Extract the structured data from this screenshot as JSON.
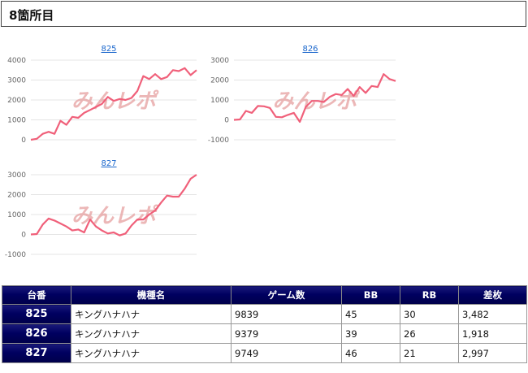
{
  "page": {
    "title": "8箇所目"
  },
  "charts": [
    {
      "link": "825",
      "y_ticks": [
        "4000",
        "3000",
        "2000",
        "1000",
        "0"
      ],
      "ylim": [
        0,
        4000
      ],
      "values": [
        0,
        50,
        300,
        400,
        300,
        950,
        750,
        1150,
        1100,
        1350,
        1500,
        1650,
        1800,
        2150,
        1950,
        2050,
        2000,
        2100,
        2450,
        3200,
        3050,
        3300,
        3050,
        3150,
        3500,
        3450,
        3600,
        3250,
        3500
      ]
    },
    {
      "link": "826",
      "y_ticks": [
        "3000",
        "2000",
        "1000",
        "0",
        "-1000"
      ],
      "ylim": [
        -1000,
        3000
      ],
      "values": [
        0,
        20,
        450,
        350,
        700,
        680,
        600,
        150,
        130,
        250,
        350,
        -100,
        650,
        950,
        950,
        900,
        1150,
        1300,
        1250,
        1550,
        1200,
        1650,
        1350,
        1700,
        1650,
        2300,
        2050,
        1950
      ]
    },
    {
      "link": "827",
      "y_ticks": [
        "3000",
        "2000",
        "1000",
        "0",
        "-1000"
      ],
      "ylim": [
        -1000,
        3000
      ],
      "values": [
        0,
        20,
        500,
        800,
        700,
        550,
        400,
        200,
        250,
        100,
        750,
        400,
        200,
        50,
        100,
        -50,
        50,
        450,
        750,
        750,
        1000,
        1200,
        1600,
        1950,
        1900,
        1900,
        2300,
        2800,
        3000
      ]
    }
  ],
  "table": {
    "headers": [
      "台番",
      "機種名",
      "ゲーム数",
      "BB",
      "RB",
      "差枚"
    ],
    "rows": [
      {
        "number": "825",
        "model": "キングハナハナ",
        "games": "9839",
        "bb": "45",
        "rb": "30",
        "diff": "3,482"
      },
      {
        "number": "826",
        "model": "キングハナハナ",
        "games": "9379",
        "bb": "39",
        "rb": "26",
        "diff": "1,918"
      },
      {
        "number": "827",
        "model": "キングハナハナ",
        "games": "9749",
        "bb": "46",
        "rb": "21",
        "diff": "2,997"
      }
    ]
  },
  "colors": {
    "line": "#f0607a",
    "watermark": "#e6a0a0",
    "header_bg": "#000060"
  },
  "watermark_icon": "watermark-logo-icon"
}
